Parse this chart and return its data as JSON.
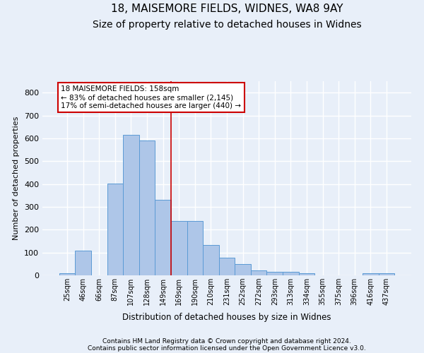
{
  "title1": "18, MAISEMORE FIELDS, WIDNES, WA8 9AY",
  "title2": "Size of property relative to detached houses in Widnes",
  "xlabel": "Distribution of detached houses by size in Widnes",
  "ylabel": "Number of detached properties",
  "bin_labels": [
    "25sqm",
    "46sqm",
    "66sqm",
    "87sqm",
    "107sqm",
    "128sqm",
    "149sqm",
    "169sqm",
    "190sqm",
    "210sqm",
    "231sqm",
    "252sqm",
    "272sqm",
    "293sqm",
    "313sqm",
    "334sqm",
    "355sqm",
    "375sqm",
    "396sqm",
    "416sqm",
    "437sqm"
  ],
  "bar_heights": [
    8,
    107,
    0,
    403,
    614,
    591,
    330,
    238,
    238,
    134,
    78,
    50,
    21,
    16,
    16,
    8,
    0,
    0,
    0,
    8,
    8
  ],
  "bar_color": "#aec6e8",
  "bar_edge_color": "#5b9bd5",
  "vline_x": 6.5,
  "vline_color": "#cc0000",
  "annotation_text": "18 MAISEMORE FIELDS: 158sqm\n← 83% of detached houses are smaller (2,145)\n17% of semi-detached houses are larger (440) →",
  "annotation_box_color": "#ffffff",
  "annotation_edge_color": "#cc0000",
  "ylim": [
    0,
    850
  ],
  "yticks": [
    0,
    100,
    200,
    300,
    400,
    500,
    600,
    700,
    800
  ],
  "footer1": "Contains HM Land Registry data © Crown copyright and database right 2024.",
  "footer2": "Contains public sector information licensed under the Open Government Licence v3.0.",
  "bg_color": "#e8eff9",
  "plot_bg_color": "#e8eff9",
  "grid_color": "#ffffff",
  "title_fontsize": 11,
  "subtitle_fontsize": 10
}
